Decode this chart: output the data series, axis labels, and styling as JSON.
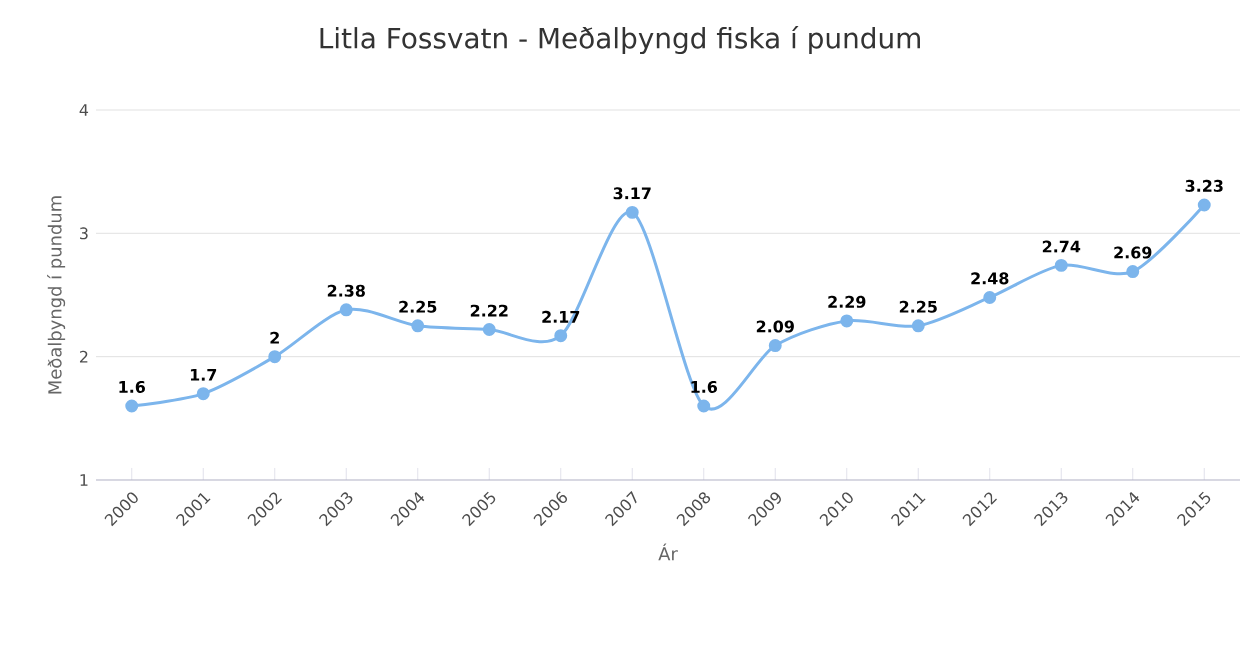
{
  "chart_data": {
    "type": "line",
    "title": "Litla Fossvatn - Meðalþyngd fiska í pundum",
    "xlabel": "Ár",
    "ylabel": "Meðalþyngd í pundum",
    "categories": [
      "2000",
      "2001",
      "2002",
      "2003",
      "2004",
      "2005",
      "2006",
      "2007",
      "2008",
      "2009",
      "2010",
      "2011",
      "2012",
      "2013",
      "2014",
      "2015"
    ],
    "values": [
      1.6,
      1.7,
      2,
      2.38,
      2.25,
      2.22,
      2.17,
      3.17,
      1.6,
      2.09,
      2.29,
      2.25,
      2.48,
      2.74,
      2.69,
      3.23
    ],
    "color": "#7cb5ec",
    "ylim": [
      1,
      4
    ],
    "yticks": [
      1,
      2,
      3,
      4
    ],
    "grid": "y",
    "marker": "circle",
    "data_labels": true
  }
}
